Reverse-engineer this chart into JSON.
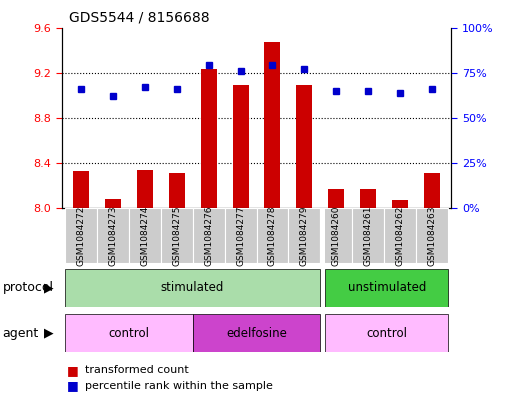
{
  "title": "GDS5544 / 8156688",
  "samples": [
    "GSM1084272",
    "GSM1084273",
    "GSM1084274",
    "GSM1084275",
    "GSM1084276",
    "GSM1084277",
    "GSM1084278",
    "GSM1084279",
    "GSM1084260",
    "GSM1084261",
    "GSM1084262",
    "GSM1084263"
  ],
  "transformed_count": [
    8.33,
    8.08,
    8.34,
    8.31,
    9.23,
    9.09,
    9.47,
    9.09,
    8.17,
    8.17,
    8.07,
    8.31
  ],
  "percentile_rank": [
    66,
    62,
    67,
    66,
    79,
    76,
    79,
    77,
    65,
    65,
    64,
    66
  ],
  "ylim_left": [
    8.0,
    9.6
  ],
  "ylim_right": [
    0,
    100
  ],
  "yticks_left": [
    8.0,
    8.4,
    8.8,
    9.2,
    9.6
  ],
  "yticks_right": [
    0,
    25,
    50,
    75,
    100
  ],
  "ytick_labels_right": [
    "0%",
    "25%",
    "50%",
    "75%",
    "100%"
  ],
  "bar_color": "#cc0000",
  "dot_color": "#0000cc",
  "bar_width": 0.5,
  "protocol_groups": [
    {
      "label": "stimulated",
      "start": 0,
      "end": 7,
      "color": "#aaddaa"
    },
    {
      "label": "unstimulated",
      "start": 8,
      "end": 11,
      "color": "#44cc44"
    }
  ],
  "agent_groups": [
    {
      "label": "control",
      "start": 0,
      "end": 3,
      "color": "#ffbbff"
    },
    {
      "label": "edelfosine",
      "start": 4,
      "end": 7,
      "color": "#cc44cc"
    },
    {
      "label": "control",
      "start": 8,
      "end": 11,
      "color": "#ffbbff"
    }
  ],
  "legend_red_label": "transformed count",
  "legend_blue_label": "percentile rank within the sample",
  "protocol_label": "protocol",
  "agent_label": "agent",
  "sample_box_color": "#cccccc",
  "gap_color": "#ffffff"
}
